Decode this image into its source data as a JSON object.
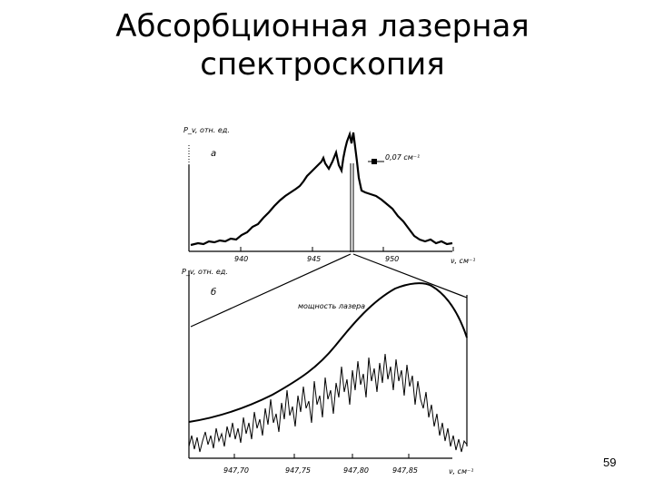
{
  "slide": {
    "title_line1": "Абсорбционная лазерная",
    "title_line2": "спектроскопия",
    "page_number": "59"
  },
  "figure": {
    "panel_a": {
      "y_label": "P_v, отн. ед.",
      "panel_letter": "а",
      "annotation": "0,07 см⁻¹",
      "x_label": "ν, см⁻¹",
      "ticks": [
        "940",
        "945",
        "950"
      ]
    },
    "panel_b": {
      "y_label": "P_v, отн. ед.",
      "panel_letter": "б",
      "curve_label": "мощность лазера",
      "x_label": "ν, см⁻¹",
      "ticks": [
        "947,70",
        "947,75",
        "947,80",
        "947,85"
      ]
    }
  }
}
